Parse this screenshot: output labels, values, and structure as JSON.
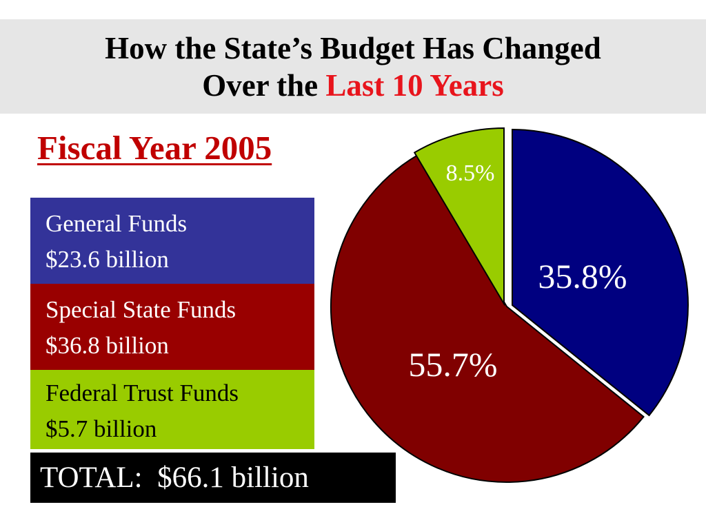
{
  "title": {
    "line1": "How the State’s Budget Has Changed",
    "line2_prefix": "Over the",
    "line2_highlight": "Last 10 Years"
  },
  "fiscal_year_heading": "Fiscal Year 2005",
  "funds": [
    {
      "name": "General Funds",
      "amount": "$23.6 billion"
    },
    {
      "name": "Special State Funds",
      "amount": "$36.8 billion"
    },
    {
      "name": "Federal Trust Funds",
      "amount": "$5.7 billion"
    }
  ],
  "total": "TOTAL:  $66.1 billion",
  "colors": {
    "title_accent": "#e8141c",
    "heading": "#c00000",
    "general": "#000080",
    "special": "#800000",
    "federal": "#99cc00"
  },
  "chart_data": {
    "type": "pie",
    "slices": [
      {
        "label": "35.8%",
        "value": 35.8,
        "color": "#000080",
        "label_color": "#ffffff"
      },
      {
        "label": "55.7%",
        "value": 55.7,
        "color": "#800000",
        "label_color": "#ffffff"
      },
      {
        "label": "8.5%",
        "value": 8.5,
        "color": "#99cc00",
        "label_color": "#ffffff"
      }
    ],
    "start_angle_deg": 0,
    "direction": "clockwise",
    "exploded": [
      "35.8%",
      "8.5%"
    ]
  }
}
